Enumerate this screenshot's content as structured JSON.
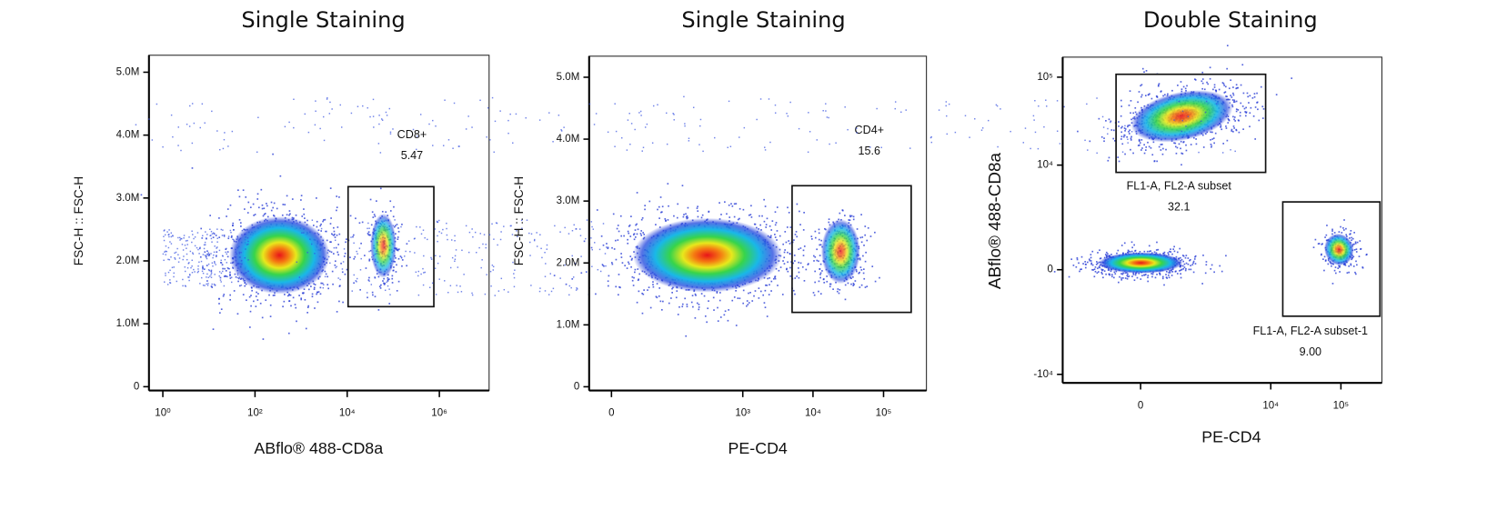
{
  "chart_data": [
    {
      "type": "density",
      "title": "Single Staining",
      "x_label": "ABflo® 488-CD8a",
      "y_label": "FSC-H :: FSC-H",
      "xscale": "log",
      "xlim": [
        0.5,
        12000000
      ],
      "xticks": [
        {
          "value": 1,
          "label": "10⁰"
        },
        {
          "value": 100,
          "label": "10²"
        },
        {
          "value": 10000,
          "label": "10⁴"
        },
        {
          "value": 1000000,
          "label": "10⁶"
        }
      ],
      "yscale": "linear",
      "ylim": [
        -60000,
        5270000
      ],
      "yticks": [
        0,
        {
          "value": 1000000,
          "label": "1.0M"
        },
        {
          "value": 2000000,
          "label": "2.0M"
        },
        {
          "value": 3000000,
          "label": "3.0M"
        },
        {
          "value": 4000000,
          "label": "4.0M"
        },
        {
          "value": 5000000,
          "label": "5.0M"
        }
      ],
      "gates": [
        {
          "name": "CD8+",
          "value": 5.47
        }
      ]
    },
    {
      "type": "density",
      "title": "Single Staining",
      "x_label": "PE-CD4",
      "y_label": "FSC-H :: FSC-H",
      "xscale": "biex",
      "xlim": [
        -15,
        405000
      ],
      "xticks": [
        0,
        {
          "value": 1000,
          "label": "10³"
        },
        {
          "value": 10000,
          "label": "10⁴"
        },
        {
          "value": 100000,
          "label": "10⁵"
        }
      ],
      "yscale": "linear",
      "ylim": [
        -60000,
        5340000
      ],
      "yticks": [
        0,
        {
          "value": 1000000,
          "label": "1.0M"
        },
        {
          "value": 2000000,
          "label": "2.0M"
        },
        {
          "value": 3000000,
          "label": "3.0M"
        },
        {
          "value": 4000000,
          "label": "4.0M"
        },
        {
          "value": 5000000,
          "label": "5.0M"
        }
      ],
      "gates": [
        {
          "name": "CD4+",
          "value": 15.6
        }
      ]
    },
    {
      "type": "density",
      "title": "Double Staining",
      "x_label": "PE-CD4",
      "y_label": "ABflo® 488-CD8a",
      "xscale": "biex",
      "xlim": [
        -1700,
        381000
      ],
      "xticks": [
        0,
        {
          "value": 10000,
          "label": "10⁴"
        },
        {
          "value": 100000,
          "label": "10⁵"
        }
      ],
      "yscale": "biex",
      "ylim": [
        -12600,
        167000
      ],
      "yticks": [
        {
          "value": -10000,
          "label": "-10⁴"
        },
        0,
        {
          "value": 10000,
          "label": "10⁴"
        },
        {
          "value": 100000,
          "label": "10⁵"
        }
      ],
      "gates": [
        {
          "name": "FL1-A, FL2-A subset",
          "value": 32.1
        },
        {
          "name": "FL1-A, FL2-A subset-1",
          "value": 9,
          "value_label": "9.00"
        }
      ]
    }
  ]
}
